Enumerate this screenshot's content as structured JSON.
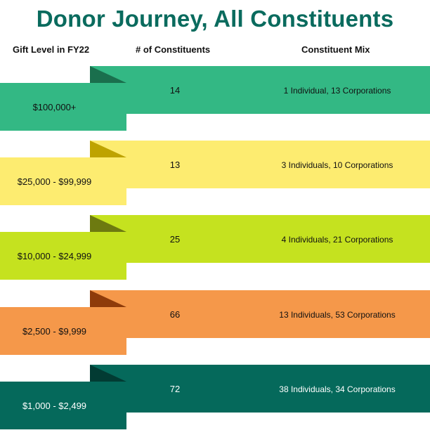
{
  "title": "Donor Journey, All Constituents",
  "colors": {
    "title": "#0a6b5e"
  },
  "headers": {
    "gift_level": "Gift Level in FY22",
    "constituents": "# of Constituents",
    "mix": "Constituent Mix"
  },
  "tiers": [
    {
      "level": "$100,000+",
      "constituents": "14",
      "mix": "1 Individual, 13 Corporations",
      "color": "#33b884",
      "fold_color": "#1a6f4d",
      "text_color": "#111111"
    },
    {
      "level": "$25,000 - $99,999",
      "constituents": "13",
      "mix": "3 Individuals, 10 Corporations",
      "color": "#fdec70",
      "fold_color": "#bea300",
      "text_color": "#111111"
    },
    {
      "level": "$10,000 - $24,999",
      "constituents": "25",
      "mix": "4 Individuals, 21 Corporations",
      "color": "#c5e21f",
      "fold_color": "#6d7a10",
      "text_color": "#111111"
    },
    {
      "level": "$2,500 - $9,999",
      "constituents": "66",
      "mix": "13 Individuals, 53 Corporations",
      "color": "#f5984a",
      "fold_color": "#8e3b0a",
      "text_color": "#111111"
    },
    {
      "level": "$1,000 - $2,499",
      "constituents": "72",
      "mix": "38 Individuals, 34 Corporations",
      "color": "#05695b",
      "fold_color": "#023b33",
      "text_color": "#ffffff"
    }
  ]
}
